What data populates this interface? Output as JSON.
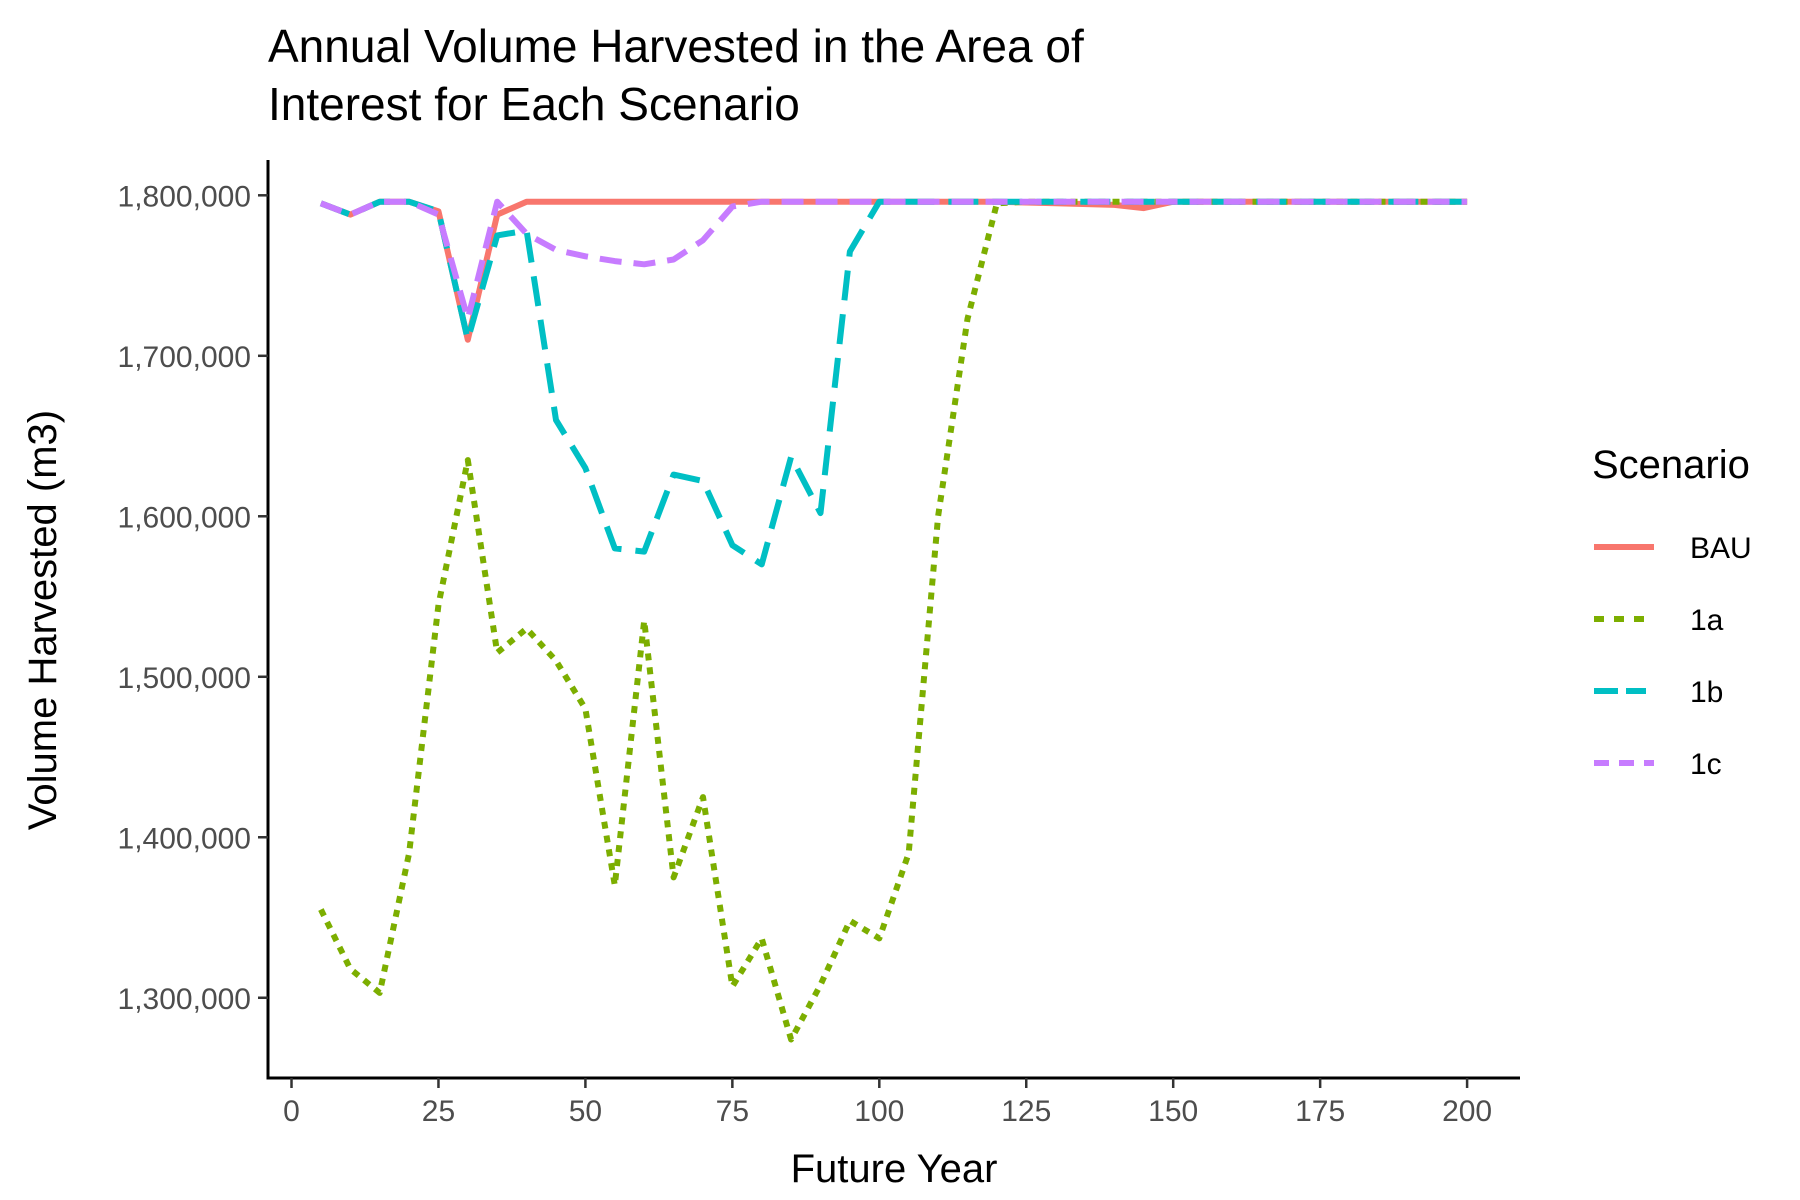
{
  "chart_data": {
    "type": "line",
    "title_line1": "Annual Volume Harvested in the Area of",
    "title_line2": "Interest for Each Scenario",
    "xlabel": "Future Year",
    "ylabel": "Volume Harvested (m3)",
    "xlim": [
      -4,
      209
    ],
    "ylim": [
      1250000,
      1822000
    ],
    "x_ticks": [
      0,
      25,
      50,
      75,
      100,
      125,
      150,
      175,
      200
    ],
    "x_tick_labels": [
      "0",
      "25",
      "50",
      "75",
      "100",
      "125",
      "150",
      "175",
      "200"
    ],
    "y_ticks": [
      1300000,
      1400000,
      1500000,
      1600000,
      1700000,
      1800000
    ],
    "y_tick_labels": [
      "1,300,000",
      "1,400,000",
      "1,500,000",
      "1,600,000",
      "1,700,000",
      "1,800,000"
    ],
    "grid": false,
    "legend": {
      "title": "Scenario",
      "position": "right"
    },
    "series": [
      {
        "name": "BAU",
        "color": "#F8766D",
        "dash": "solid",
        "points": [
          [
            5,
            1795000
          ],
          [
            10,
            1788000
          ],
          [
            15,
            1796000
          ],
          [
            20,
            1796000
          ],
          [
            25,
            1790000
          ],
          [
            30,
            1710000
          ],
          [
            35,
            1788000
          ],
          [
            40,
            1796000
          ],
          [
            45,
            1796000
          ],
          [
            50,
            1796000
          ],
          [
            60,
            1796000
          ],
          [
            70,
            1796000
          ],
          [
            80,
            1796000
          ],
          [
            90,
            1796000
          ],
          [
            100,
            1796000
          ],
          [
            110,
            1796000
          ],
          [
            120,
            1796000
          ],
          [
            130,
            1795000
          ],
          [
            140,
            1794000
          ],
          [
            145,
            1792000
          ],
          [
            150,
            1796000
          ],
          [
            160,
            1796000
          ],
          [
            170,
            1796000
          ],
          [
            180,
            1796000
          ],
          [
            190,
            1796000
          ],
          [
            200,
            1796000
          ]
        ]
      },
      {
        "name": "1a",
        "color": "#7CAE00",
        "dash": "dotted",
        "points": [
          [
            5,
            1355000
          ],
          [
            10,
            1318000
          ],
          [
            15,
            1303000
          ],
          [
            20,
            1390000
          ],
          [
            25,
            1545000
          ],
          [
            30,
            1635000
          ],
          [
            35,
            1515000
          ],
          [
            40,
            1530000
          ],
          [
            45,
            1510000
          ],
          [
            50,
            1480000
          ],
          [
            55,
            1370000
          ],
          [
            60,
            1535000
          ],
          [
            65,
            1375000
          ],
          [
            70,
            1425000
          ],
          [
            75,
            1307000
          ],
          [
            80,
            1337000
          ],
          [
            85,
            1274000
          ],
          [
            90,
            1308000
          ],
          [
            95,
            1348000
          ],
          [
            100,
            1337000
          ],
          [
            105,
            1390000
          ],
          [
            110,
            1600000
          ],
          [
            115,
            1723000
          ],
          [
            120,
            1795000
          ],
          [
            125,
            1796000
          ],
          [
            130,
            1796000
          ],
          [
            140,
            1796000
          ],
          [
            150,
            1796000
          ],
          [
            160,
            1796000
          ],
          [
            170,
            1796000
          ],
          [
            180,
            1796000
          ],
          [
            190,
            1796000
          ],
          [
            200,
            1796000
          ]
        ]
      },
      {
        "name": "1b",
        "color": "#00BFC4",
        "dash": "longdash",
        "points": [
          [
            5,
            1795000
          ],
          [
            10,
            1788000
          ],
          [
            15,
            1796000
          ],
          [
            20,
            1796000
          ],
          [
            25,
            1790000
          ],
          [
            30,
            1710000
          ],
          [
            35,
            1775000
          ],
          [
            40,
            1778000
          ],
          [
            45,
            1660000
          ],
          [
            50,
            1630000
          ],
          [
            55,
            1580000
          ],
          [
            60,
            1578000
          ],
          [
            65,
            1626000
          ],
          [
            70,
            1622000
          ],
          [
            75,
            1582000
          ],
          [
            80,
            1570000
          ],
          [
            85,
            1637000
          ],
          [
            90,
            1602000
          ],
          [
            95,
            1765000
          ],
          [
            100,
            1796000
          ],
          [
            110,
            1796000
          ],
          [
            120,
            1796000
          ],
          [
            130,
            1796000
          ],
          [
            140,
            1796000
          ],
          [
            150,
            1796000
          ],
          [
            160,
            1796000
          ],
          [
            170,
            1796000
          ],
          [
            180,
            1796000
          ],
          [
            190,
            1796000
          ],
          [
            200,
            1796000
          ]
        ]
      },
      {
        "name": "1c",
        "color": "#C77CFF",
        "dash": "dashed",
        "points": [
          [
            5,
            1795000
          ],
          [
            10,
            1788000
          ],
          [
            15,
            1796000
          ],
          [
            20,
            1796000
          ],
          [
            25,
            1788000
          ],
          [
            30,
            1723000
          ],
          [
            35,
            1796000
          ],
          [
            40,
            1776000
          ],
          [
            45,
            1766000
          ],
          [
            50,
            1762000
          ],
          [
            55,
            1759000
          ],
          [
            60,
            1757000
          ],
          [
            65,
            1760000
          ],
          [
            70,
            1772000
          ],
          [
            75,
            1793000
          ],
          [
            80,
            1796000
          ],
          [
            90,
            1796000
          ],
          [
            100,
            1796000
          ],
          [
            110,
            1796000
          ],
          [
            120,
            1796000
          ],
          [
            130,
            1796000
          ],
          [
            140,
            1796000
          ],
          [
            150,
            1796000
          ],
          [
            160,
            1796000
          ],
          [
            170,
            1796000
          ],
          [
            180,
            1796000
          ],
          [
            190,
            1796000
          ],
          [
            200,
            1796000
          ]
        ]
      }
    ]
  }
}
